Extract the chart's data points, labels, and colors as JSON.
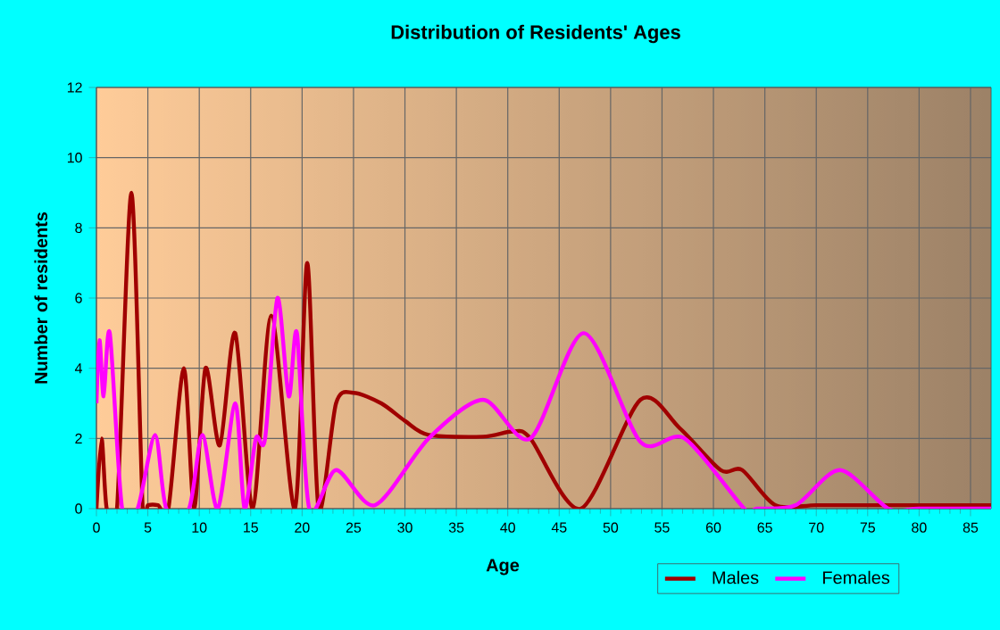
{
  "chart_data": {
    "type": "line",
    "title": "Distribution of Residents' Ages",
    "xlabel": "Age",
    "ylabel": "Number of residents",
    "xlim": [
      0,
      87
    ],
    "ylim": [
      0,
      12
    ],
    "xticks": [
      0,
      5,
      10,
      15,
      20,
      25,
      30,
      35,
      40,
      45,
      50,
      55,
      60,
      65,
      70,
      75,
      80,
      85
    ],
    "yticks": [
      0,
      2,
      4,
      6,
      8,
      10,
      12
    ],
    "grid": true,
    "legend": "bottom right",
    "series": [
      {
        "name": "Males",
        "color": "#a00000",
        "x": [
          0,
          0.5,
          1,
          2,
          3.4,
          4.5,
          5,
          6,
          7,
          8.5,
          9.5,
          10.6,
          12,
          13.5,
          15.2,
          17,
          19.3,
          20.5,
          21.6,
          23.3,
          25,
          27.7,
          30,
          32.3,
          37.6,
          40.5,
          42.2,
          47.1,
          52.9,
          56.7,
          60.7,
          62.8,
          66,
          70,
          75,
          80,
          87
        ],
        "values": [
          0,
          2,
          0,
          0,
          9,
          0,
          0.1,
          0.1,
          0,
          4,
          0,
          4,
          1.8,
          5,
          0,
          5.5,
          0,
          7,
          0,
          3,
          3.3,
          3,
          2.5,
          2.1,
          2.05,
          2.2,
          2,
          0,
          3.1,
          2.3,
          1.1,
          1.1,
          0.1,
          0.1,
          0.1,
          0.1,
          0.1
        ]
      },
      {
        "name": "Females",
        "color": "#ff00ff",
        "x": [
          0,
          0.3,
          0.7,
          1.3,
          2.5,
          4,
          5.7,
          6.8,
          9,
          10.3,
          11.8,
          13.5,
          14.4,
          15.5,
          16.4,
          17.6,
          18.7,
          19.5,
          20.7,
          23.3,
          27.1,
          32.3,
          37.6,
          42.2,
          47.4,
          52.9,
          57.2,
          63,
          64.2,
          68,
          72.3,
          77,
          80,
          87
        ],
        "values": [
          3,
          4.8,
          3.2,
          5,
          0,
          0,
          2.1,
          0,
          0,
          2.1,
          0,
          3,
          0,
          2,
          2,
          6,
          3.2,
          5,
          0,
          1.1,
          0.1,
          2,
          3.1,
          2,
          5,
          1.9,
          2,
          0,
          0,
          0.1,
          1.1,
          0,
          0,
          0
        ]
      }
    ]
  }
}
